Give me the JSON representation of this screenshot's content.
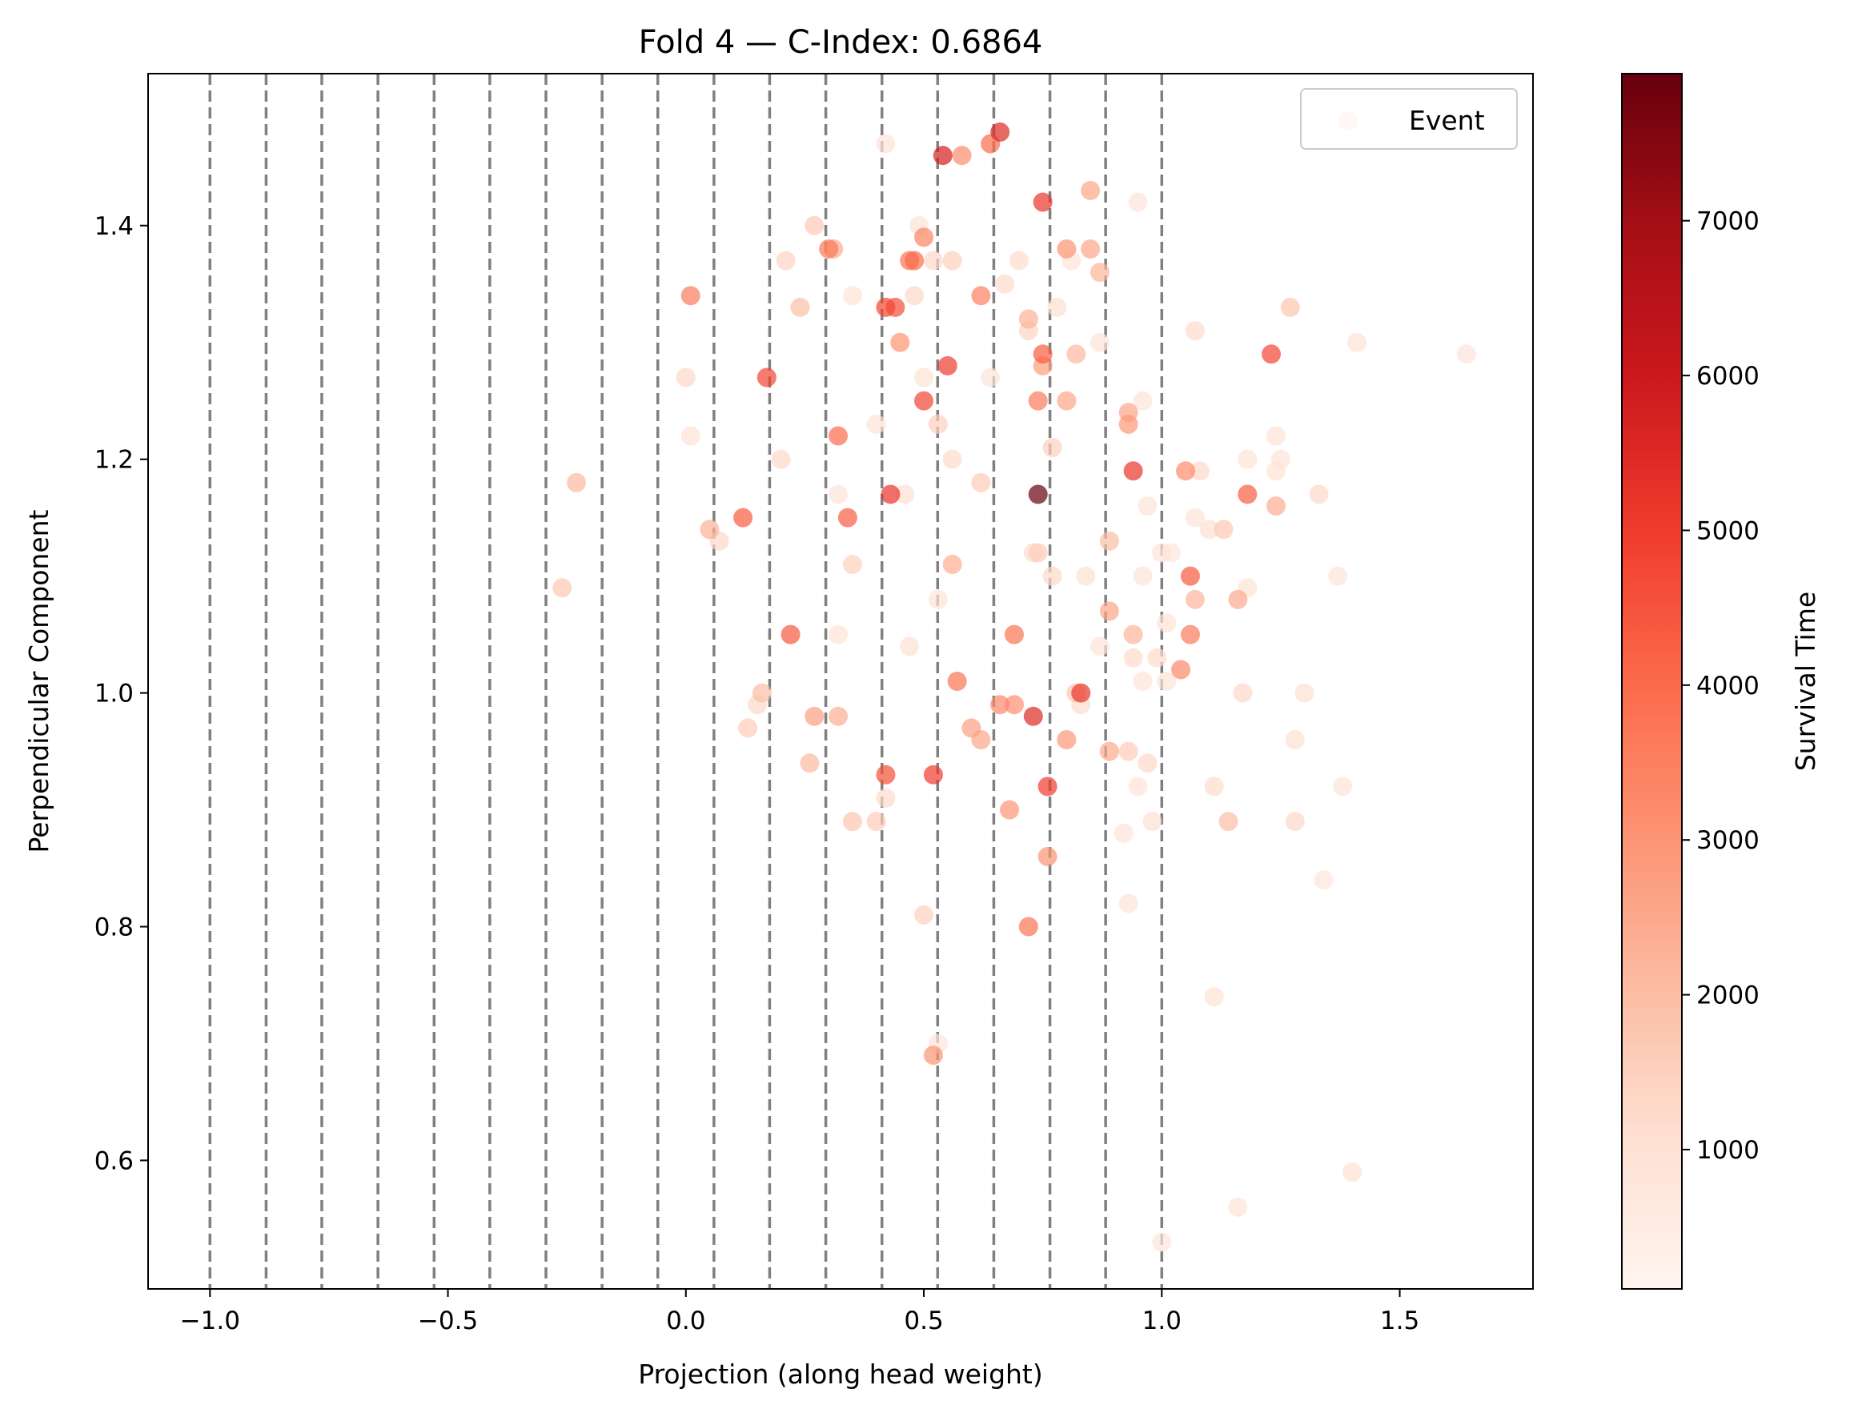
{
  "chart_data": {
    "type": "scatter",
    "title": "Fold 4 — C-Index: 0.6864",
    "xlabel": "Projection (along head weight)",
    "ylabel": "Perpendicular Component",
    "xlim": [
      -1.13,
      1.78
    ],
    "ylim": [
      0.49,
      1.53
    ],
    "x_ticks": [
      -1.0,
      -0.5,
      0.0,
      0.5,
      1.0,
      1.5
    ],
    "x_tick_labels": [
      "−1.0",
      "−0.5",
      "0.0",
      "0.5",
      "1.0",
      "1.5"
    ],
    "y_ticks": [
      0.6,
      0.8,
      1.0,
      1.2,
      1.4
    ],
    "y_tick_labels": [
      "0.6",
      "0.8",
      "1.0",
      "1.2",
      "1.4"
    ],
    "vlines": [
      -1.0,
      -0.882,
      -0.765,
      -0.647,
      -0.529,
      -0.412,
      -0.294,
      -0.176,
      -0.059,
      0.059,
      0.176,
      0.294,
      0.412,
      0.529,
      0.647,
      0.765,
      0.882,
      1.0
    ],
    "vline_color": "#808080",
    "legend": {
      "label": "Event",
      "placement": "upper right"
    },
    "grid": false,
    "colorbar": {
      "label": "Survival Time",
      "cmap": "Reds",
      "range": [
        100,
        7950
      ],
      "ticks": [
        1000,
        2000,
        3000,
        4000,
        5000,
        6000,
        7000
      ],
      "tick_labels": [
        "1000",
        "2000",
        "3000",
        "4000",
        "5000",
        "6000",
        "7000"
      ]
    },
    "points": [
      [
        0.42,
        1.47,
        900
      ],
      [
        0.54,
        1.46,
        5800
      ],
      [
        0.58,
        1.46,
        3200
      ],
      [
        0.64,
        1.47,
        4000
      ],
      [
        0.66,
        1.48,
        5500
      ],
      [
        0.85,
        1.43,
        2600
      ],
      [
        0.95,
        1.42,
        900
      ],
      [
        0.75,
        1.42,
        5200
      ],
      [
        0.27,
        1.4,
        1700
      ],
      [
        0.3,
        1.38,
        3700
      ],
      [
        0.31,
        1.38,
        2500
      ],
      [
        0.21,
        1.37,
        1400
      ],
      [
        0.49,
        1.4,
        1000
      ],
      [
        0.5,
        1.39,
        3400
      ],
      [
        0.47,
        1.37,
        3800
      ],
      [
        0.48,
        1.37,
        4000
      ],
      [
        0.52,
        1.37,
        1300
      ],
      [
        0.56,
        1.37,
        1500
      ],
      [
        0.7,
        1.37,
        1200
      ],
      [
        0.8,
        1.38,
        3000
      ],
      [
        0.81,
        1.37,
        1000
      ],
      [
        0.85,
        1.38,
        2600
      ],
      [
        0.87,
        1.36,
        2200
      ],
      [
        0.01,
        1.34,
        3600
      ],
      [
        0.35,
        1.34,
        1000
      ],
      [
        0.42,
        1.33,
        4800
      ],
      [
        0.44,
        1.33,
        4600
      ],
      [
        0.48,
        1.34,
        1300
      ],
      [
        0.62,
        1.34,
        3500
      ],
      [
        0.67,
        1.35,
        1200
      ],
      [
        0.24,
        1.33,
        2000
      ],
      [
        0.72,
        1.32,
        2300
      ],
      [
        0.78,
        1.33,
        1100
      ],
      [
        1.27,
        1.33,
        1800
      ],
      [
        0.45,
        1.3,
        1000
      ],
      [
        0.45,
        1.3,
        2800
      ],
      [
        0.72,
        1.31,
        1400
      ],
      [
        0.87,
        1.3,
        900
      ],
      [
        1.07,
        1.31,
        1200
      ],
      [
        1.41,
        1.3,
        1000
      ],
      [
        1.64,
        1.29,
        900
      ],
      [
        0.75,
        1.29,
        4300
      ],
      [
        0.55,
        1.28,
        5000
      ],
      [
        0.82,
        1.29,
        2100
      ],
      [
        1.23,
        1.29,
        4800
      ],
      [
        0.0,
        1.27,
        1300
      ],
      [
        0.17,
        1.27,
        4800
      ],
      [
        0.5,
        1.27,
        1000
      ],
      [
        0.64,
        1.27,
        900
      ],
      [
        0.75,
        1.28,
        2800
      ],
      [
        0.5,
        1.25,
        4800
      ],
      [
        0.74,
        1.25,
        3600
      ],
      [
        0.8,
        1.25,
        2600
      ],
      [
        0.96,
        1.25,
        900
      ],
      [
        0.93,
        1.24,
        2600
      ],
      [
        0.93,
        1.23,
        2900
      ],
      [
        0.4,
        1.23,
        1000
      ],
      [
        0.32,
        1.22,
        4000
      ],
      [
        0.53,
        1.23,
        1500
      ],
      [
        0.01,
        1.22,
        1000
      ],
      [
        1.24,
        1.22,
        1000
      ],
      [
        0.2,
        1.2,
        1300
      ],
      [
        0.56,
        1.2,
        1200
      ],
      [
        0.77,
        1.21,
        1500
      ],
      [
        1.18,
        1.2,
        1000
      ],
      [
        1.25,
        1.2,
        900
      ],
      [
        0.94,
        1.19,
        5200
      ],
      [
        1.05,
        1.19,
        3200
      ],
      [
        1.08,
        1.19,
        1300
      ],
      [
        1.24,
        1.19,
        1000
      ],
      [
        -0.23,
        1.18,
        2100
      ],
      [
        0.62,
        1.18,
        1600
      ],
      [
        0.43,
        1.17,
        5200
      ],
      [
        0.46,
        1.17,
        1100
      ],
      [
        0.32,
        1.17,
        900
      ],
      [
        0.74,
        1.17,
        7950
      ],
      [
        1.18,
        1.17,
        4300
      ],
      [
        1.33,
        1.17,
        1300
      ],
      [
        0.97,
        1.16,
        1000
      ],
      [
        1.24,
        1.16,
        2400
      ],
      [
        0.12,
        1.15,
        4300
      ],
      [
        0.34,
        1.15,
        4300
      ],
      [
        1.07,
        1.15,
        900
      ],
      [
        1.1,
        1.14,
        1100
      ],
      [
        1.13,
        1.14,
        1700
      ],
      [
        0.05,
        1.14,
        2300
      ],
      [
        0.07,
        1.13,
        1300
      ],
      [
        0.89,
        1.13,
        2000
      ],
      [
        0.73,
        1.12,
        1200
      ],
      [
        0.74,
        1.12,
        1600
      ],
      [
        1.0,
        1.12,
        1000
      ],
      [
        1.02,
        1.12,
        800
      ],
      [
        0.35,
        1.11,
        1500
      ],
      [
        0.56,
        1.11,
        2400
      ],
      [
        0.77,
        1.1,
        1300
      ],
      [
        0.84,
        1.1,
        1100
      ],
      [
        0.96,
        1.1,
        900
      ],
      [
        1.06,
        1.1,
        4400
      ],
      [
        1.37,
        1.1,
        900
      ],
      [
        -0.26,
        1.09,
        1700
      ],
      [
        1.18,
        1.09,
        1000
      ],
      [
        1.16,
        1.08,
        2500
      ],
      [
        0.53,
        1.08,
        900
      ],
      [
        1.07,
        1.08,
        2200
      ],
      [
        0.89,
        1.07,
        2600
      ],
      [
        1.01,
        1.06,
        1000
      ],
      [
        0.22,
        1.05,
        4400
      ],
      [
        0.32,
        1.05,
        1000
      ],
      [
        0.69,
        1.05,
        3800
      ],
      [
        0.94,
        1.05,
        2200
      ],
      [
        0.47,
        1.04,
        1100
      ],
      [
        0.87,
        1.04,
        900
      ],
      [
        1.06,
        1.05,
        3600
      ],
      [
        0.94,
        1.03,
        1200
      ],
      [
        0.99,
        1.03,
        1200
      ],
      [
        1.04,
        1.02,
        3300
      ],
      [
        0.96,
        1.01,
        1000
      ],
      [
        0.57,
        1.01,
        3800
      ],
      [
        1.01,
        1.01,
        1000
      ],
      [
        0.16,
        1.0,
        2000
      ],
      [
        0.82,
        1.0,
        1800
      ],
      [
        0.83,
        1.0,
        5200
      ],
      [
        1.17,
        1.0,
        1300
      ],
      [
        1.3,
        1.0,
        1100
      ],
      [
        0.15,
        0.99,
        1300
      ],
      [
        0.66,
        0.99,
        3300
      ],
      [
        0.69,
        0.99,
        3100
      ],
      [
        0.83,
        0.99,
        1200
      ],
      [
        0.27,
        0.98,
        2700
      ],
      [
        0.32,
        0.98,
        2400
      ],
      [
        0.6,
        0.97,
        2700
      ],
      [
        0.73,
        0.98,
        5500
      ],
      [
        0.13,
        0.97,
        1600
      ],
      [
        0.62,
        0.96,
        2600
      ],
      [
        0.8,
        0.96,
        2900
      ],
      [
        1.28,
        0.96,
        1100
      ],
      [
        0.93,
        0.95,
        1600
      ],
      [
        0.89,
        0.95,
        2500
      ],
      [
        0.97,
        0.94,
        1300
      ],
      [
        0.26,
        0.94,
        2100
      ],
      [
        0.42,
        0.93,
        4600
      ],
      [
        0.52,
        0.93,
        5000
      ],
      [
        0.76,
        0.92,
        5000
      ],
      [
        0.95,
        0.92,
        900
      ],
      [
        1.11,
        0.92,
        1200
      ],
      [
        1.38,
        0.92,
        900
      ],
      [
        0.42,
        0.91,
        1200
      ],
      [
        0.68,
        0.9,
        3000
      ],
      [
        0.35,
        0.89,
        1800
      ],
      [
        0.4,
        0.89,
        1600
      ],
      [
        1.14,
        0.89,
        2000
      ],
      [
        1.28,
        0.89,
        1300
      ],
      [
        0.98,
        0.89,
        1100
      ],
      [
        0.92,
        0.88,
        900
      ],
      [
        0.76,
        0.86,
        3000
      ],
      [
        1.34,
        0.84,
        800
      ],
      [
        0.93,
        0.82,
        900
      ],
      [
        0.5,
        0.81,
        1500
      ],
      [
        0.72,
        0.8,
        3800
      ],
      [
        1.11,
        0.74,
        1000
      ],
      [
        0.52,
        0.69,
        3000
      ],
      [
        0.53,
        0.7,
        800
      ],
      [
        1.4,
        0.59,
        1100
      ],
      [
        1.16,
        0.56,
        900
      ],
      [
        1.0,
        0.53,
        800
      ]
    ]
  }
}
